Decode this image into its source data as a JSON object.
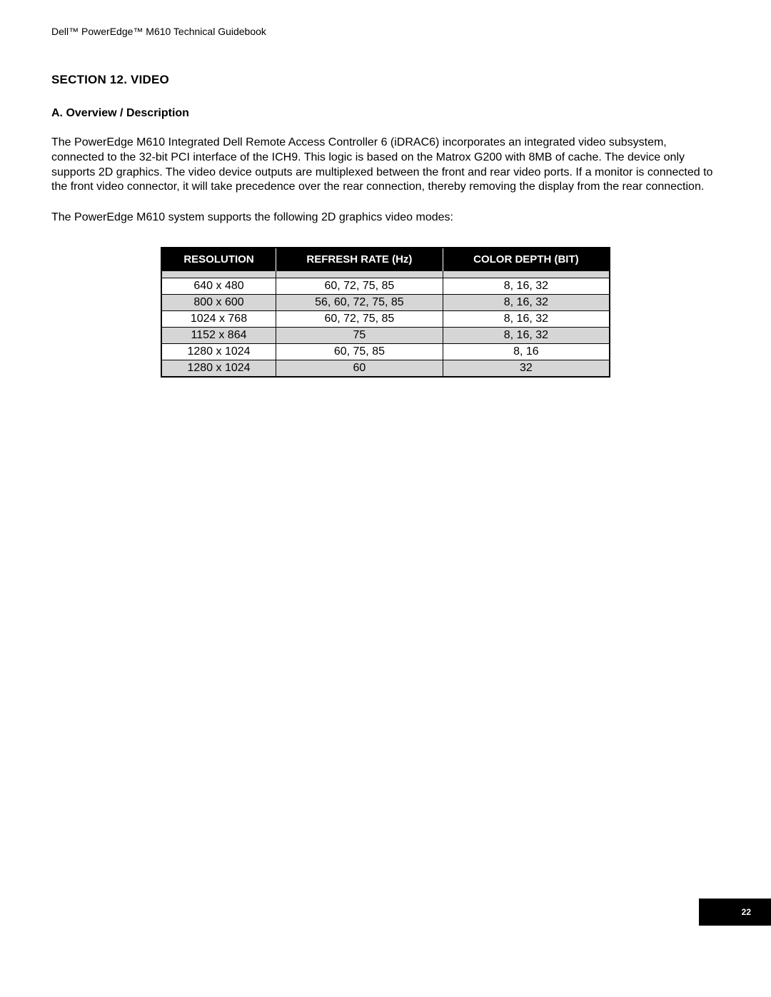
{
  "header": "Dell™ PowerEdge™ M610 Technical Guidebook",
  "section_title": "SECTION 12. VIDEO",
  "subsection_title": "A. Overview / Description",
  "paragraph_1": "The PowerEdge M610 Integrated Dell Remote Access Controller 6 (iDRAC6) incorporates an integrated video subsystem, connected to the 32-bit PCI interface of the ICH9. This logic is based on the Matrox G200 with 8MB of cache. The device only supports 2D graphics. The video device outputs are multiplexed between the front and rear video ports. If a monitor is connected to the front video connector, it will take precedence over the rear connection, thereby removing the display from the rear connection.",
  "paragraph_2": "The PowerEdge M610 system supports the following 2D graphics video modes:",
  "table": {
    "columns": [
      "RESOLUTION",
      "REFRESH RATE (Hz)",
      "COLOR DEPTH (BIT)"
    ],
    "rows": [
      {
        "cells": [
          "640 x 480",
          "60, 72, 75, 85",
          "8, 16, 32"
        ],
        "alt": false
      },
      {
        "cells": [
          "800 x 600",
          "56, 60, 72, 75, 85",
          "8, 16, 32"
        ],
        "alt": true
      },
      {
        "cells": [
          "1024 x 768",
          "60, 72, 75, 85",
          "8, 16, 32"
        ],
        "alt": false
      },
      {
        "cells": [
          "1152 x 864",
          "75",
          "8, 16, 32"
        ],
        "alt": true
      },
      {
        "cells": [
          "1280 x 1024",
          "60, 75, 85",
          "8, 16"
        ],
        "alt": false
      },
      {
        "cells": [
          "1280 x 1024",
          "60",
          "32"
        ],
        "alt": true
      }
    ],
    "header_bg": "#000000",
    "header_fg": "#ffffff",
    "row_bg": "#ffffff",
    "alt_row_bg": "#d6d6d6",
    "border_color": "#000000",
    "font_size": 16
  },
  "page_number": "22",
  "colors": {
    "page_bg": "#ffffff",
    "text": "#000000",
    "footer_bg": "#000000",
    "footer_fg": "#ffffff"
  }
}
